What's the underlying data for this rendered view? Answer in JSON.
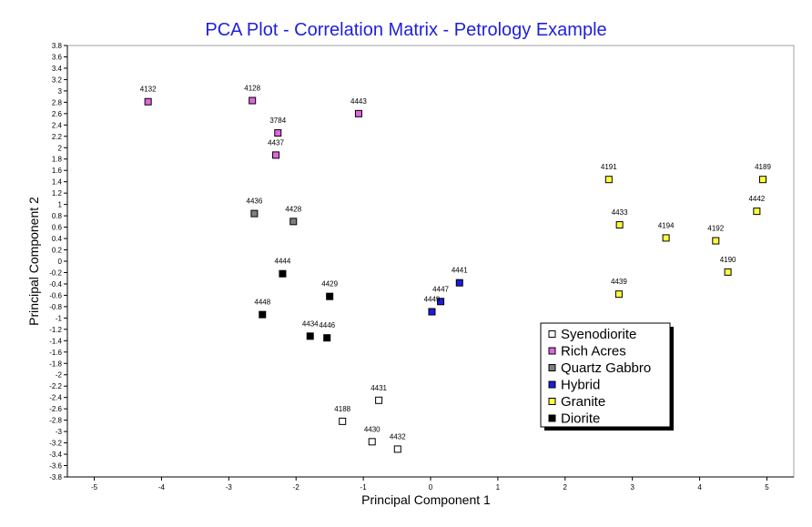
{
  "chart_data": {
    "type": "scatter",
    "title": "PCA Plot - Correlation Matrix - Petrology Example",
    "xlabel": "Principal Component 1",
    "ylabel": "Principal Component 2",
    "xlim": [
      -5.4,
      5.4
    ],
    "ylim": [
      -3.8,
      3.8
    ],
    "x_ticks": [
      -5,
      -4,
      -3,
      -2,
      -1,
      0,
      1,
      2,
      3,
      4,
      5
    ],
    "y_ticks": [
      3.8,
      3.6,
      3.4,
      3.2,
      3,
      2.8,
      2.6,
      2.4,
      2.2,
      2,
      1.8,
      1.6,
      1.4,
      1.2,
      1,
      0.8,
      0.6,
      0.4,
      0.2,
      0,
      -0.2,
      -0.4,
      -0.6,
      -0.8,
      -1,
      -1.2,
      -1.4,
      -1.6,
      -1.8,
      -2,
      -2.2,
      -2.4,
      -2.6,
      -2.8,
      -3,
      -3.2,
      -3.4,
      -3.6,
      -3.8
    ],
    "grid": false,
    "legend_position": "bottom-right",
    "series": [
      {
        "name": "Syenodiorite",
        "color": "#ffffff",
        "points": [
          {
            "label": "4431",
            "x": -0.77,
            "y": -2.45
          },
          {
            "label": "4188",
            "x": -1.31,
            "y": -2.82
          },
          {
            "label": "4430",
            "x": -0.87,
            "y": -3.18
          },
          {
            "label": "4432",
            "x": -0.49,
            "y": -3.31
          }
        ]
      },
      {
        "name": "Rich Acres",
        "color": "#e066e0",
        "points": [
          {
            "label": "4132",
            "x": -4.2,
            "y": 2.81
          },
          {
            "label": "4128",
            "x": -2.65,
            "y": 2.83
          },
          {
            "label": "4443",
            "x": -1.07,
            "y": 2.6
          },
          {
            "label": "3784",
            "x": -2.27,
            "y": 2.26
          },
          {
            "label": "4437",
            "x": -2.3,
            "y": 1.87
          }
        ]
      },
      {
        "name": "Quartz Gabbro",
        "color": "#7f7f7f",
        "points": [
          {
            "label": "4436",
            "x": -2.62,
            "y": 0.84
          },
          {
            "label": "4428",
            "x": -2.04,
            "y": 0.7
          }
        ]
      },
      {
        "name": "Hybrid",
        "color": "#1c1ce0",
        "points": [
          {
            "label": "4441",
            "x": 0.43,
            "y": -0.38
          },
          {
            "label": "4447",
            "x": 0.15,
            "y": -0.71
          },
          {
            "label": "4449",
            "x": 0.02,
            "y": -0.89
          }
        ]
      },
      {
        "name": "Granite",
        "color": "#ffff40",
        "points": [
          {
            "label": "4191",
            "x": 2.65,
            "y": 1.44
          },
          {
            "label": "4189",
            "x": 4.94,
            "y": 1.44
          },
          {
            "label": "4442",
            "x": 4.85,
            "y": 0.88
          },
          {
            "label": "4433",
            "x": 2.81,
            "y": 0.64
          },
          {
            "label": "4194",
            "x": 3.5,
            "y": 0.41
          },
          {
            "label": "4192",
            "x": 4.24,
            "y": 0.36
          },
          {
            "label": "4190",
            "x": 4.42,
            "y": -0.19
          },
          {
            "label": "4439",
            "x": 2.8,
            "y": -0.58
          }
        ]
      },
      {
        "name": "Diorite",
        "color": "#000000",
        "points": [
          {
            "label": "4444",
            "x": -2.2,
            "y": -0.22
          },
          {
            "label": "4429",
            "x": -1.5,
            "y": -0.62
          },
          {
            "label": "4448",
            "x": -2.5,
            "y": -0.94
          },
          {
            "label": "4434",
            "x": -1.79,
            "y": -1.32
          },
          {
            "label": "4446",
            "x": -1.54,
            "y": -1.35
          }
        ]
      }
    ]
  }
}
